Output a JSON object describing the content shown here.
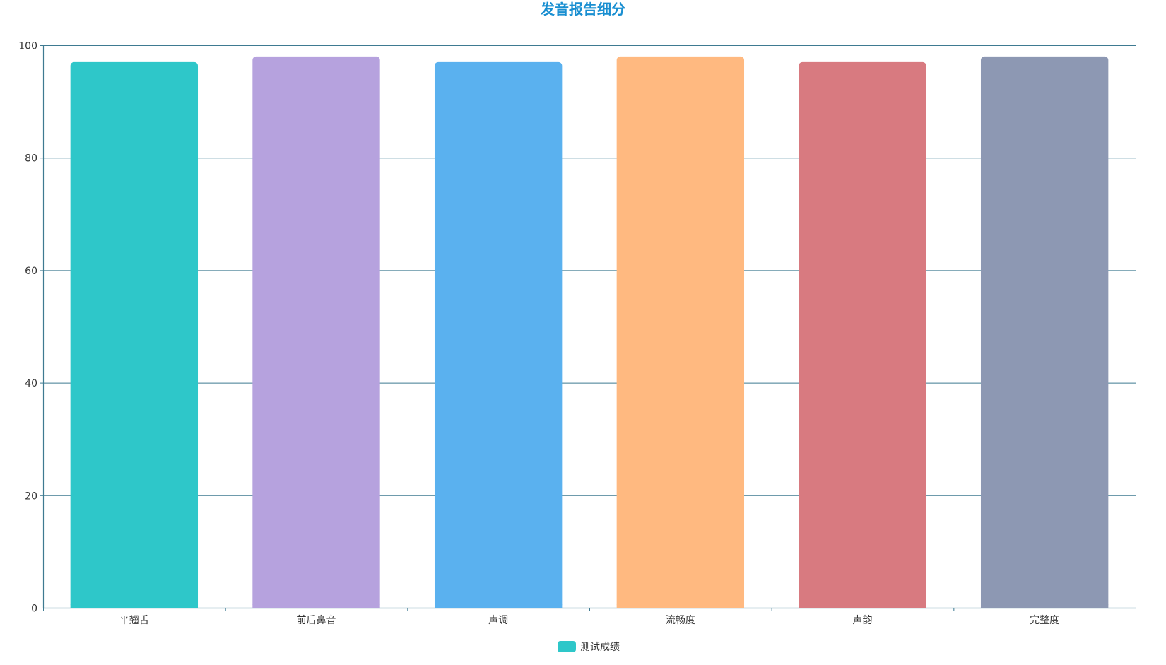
{
  "colors": {
    "title": "#1a8fd1",
    "axis": "#3e7a91",
    "grid": "#3e7a91",
    "text": "#333333",
    "legend_swatch": "#2ec7c9"
  },
  "chart_data": {
    "type": "bar",
    "title": "发音报告细分",
    "xlabel": "",
    "ylabel": "",
    "categories": [
      "平翘舌",
      "前后鼻音",
      "声调",
      "流畅度",
      "声韵",
      "完整度"
    ],
    "series": [
      {
        "name": "测试成绩",
        "values": [
          97,
          98,
          97,
          98,
          97,
          98
        ],
        "colors": [
          "#2ec7c9",
          "#b6a2de",
          "#5ab1ef",
          "#ffb980",
          "#d87a80",
          "#8d98b3"
        ]
      }
    ],
    "ylim": [
      0,
      100
    ],
    "yticks": [
      0,
      20,
      40,
      60,
      80,
      100
    ],
    "grid": true,
    "legend_position": "bottom-center"
  }
}
